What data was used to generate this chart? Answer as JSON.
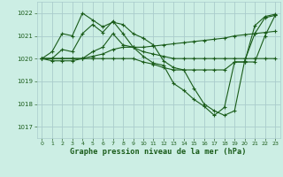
{
  "title": "Graphe pression niveau de la mer (hPa)",
  "bg_color": "#cceee4",
  "grid_color": "#aacccc",
  "line_color": "#1a5c1a",
  "xlim": [
    -0.5,
    23.5
  ],
  "ylim": [
    1016.5,
    1022.5
  ],
  "yticks": [
    1017,
    1018,
    1019,
    1020,
    1021,
    1022
  ],
  "xticks": [
    0,
    1,
    2,
    3,
    4,
    5,
    6,
    7,
    8,
    9,
    10,
    11,
    12,
    13,
    14,
    15,
    16,
    17,
    18,
    19,
    20,
    21,
    22,
    23
  ],
  "series": [
    [
      1020.0,
      1019.9,
      1019.9,
      1019.9,
      1020.0,
      1020.3,
      1020.5,
      1021.1,
      1020.6,
      1020.5,
      1020.3,
      1020.2,
      1020.1,
      1020.0,
      1020.0,
      1020.0,
      1020.0,
      1020.0,
      1020.0,
      1020.0,
      1020.0,
      1020.0,
      1020.0,
      1020.0
    ],
    [
      1020.0,
      1020.0,
      1020.0,
      1020.0,
      1020.0,
      1020.1,
      1020.2,
      1020.4,
      1020.5,
      1020.5,
      1020.5,
      1020.55,
      1020.6,
      1020.65,
      1020.7,
      1020.75,
      1020.8,
      1020.85,
      1020.9,
      1021.0,
      1021.05,
      1021.1,
      1021.15,
      1021.2
    ],
    [
      1020.0,
      1020.3,
      1021.1,
      1021.0,
      1022.0,
      1021.7,
      1021.4,
      1021.6,
      1021.5,
      1021.1,
      1020.9,
      1020.6,
      1019.9,
      1019.6,
      1019.5,
      1018.7,
      1018.0,
      1017.7,
      1017.5,
      1017.7,
      1019.9,
      1021.1,
      1021.8,
      1021.9
    ],
    [
      1020.0,
      1020.0,
      1020.4,
      1020.3,
      1021.1,
      1021.5,
      1021.15,
      1021.65,
      1021.1,
      1020.5,
      1020.1,
      1019.8,
      1019.7,
      1018.9,
      1018.6,
      1018.2,
      1017.9,
      1017.5,
      1017.85,
      1019.85,
      1019.85,
      1021.45,
      1021.85,
      1021.95
    ],
    [
      1020.0,
      1020.0,
      1020.0,
      1020.0,
      1020.0,
      1020.0,
      1020.0,
      1020.0,
      1020.0,
      1020.0,
      1019.85,
      1019.75,
      1019.6,
      1019.5,
      1019.5,
      1019.5,
      1019.5,
      1019.5,
      1019.5,
      1019.85,
      1019.85,
      1019.85,
      1021.0,
      1021.9
    ]
  ]
}
